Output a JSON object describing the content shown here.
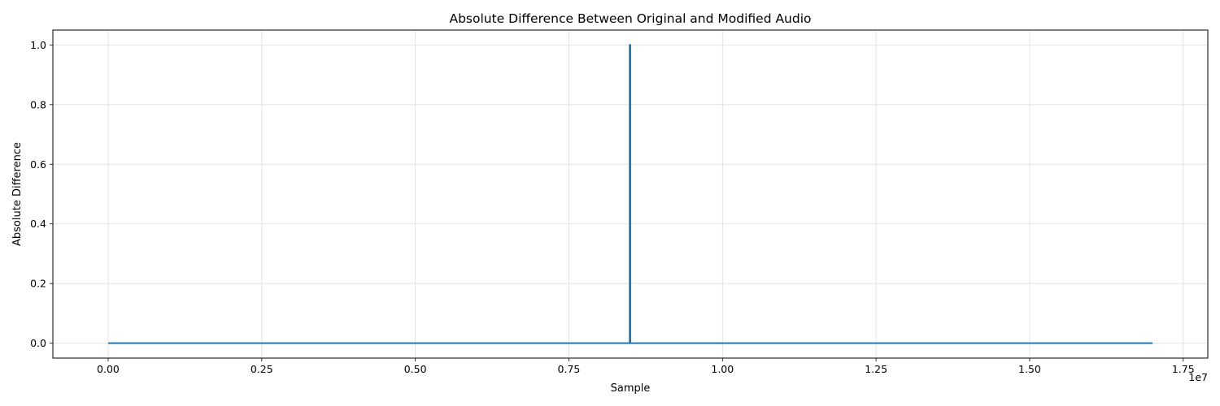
{
  "chart_data": {
    "type": "line",
    "title": "Absolute Difference Between Original and Modified Audio",
    "xlabel": "Sample",
    "ylabel": "Absolute Difference",
    "x_offset_text": "1e7",
    "xlim": [
      -900000,
      17900000
    ],
    "ylim": [
      -0.05,
      1.05
    ],
    "x_ticks": [
      0,
      2500000,
      5000000,
      7500000,
      10000000,
      12500000,
      15000000,
      17500000
    ],
    "x_tick_labels": [
      "0.00",
      "0.25",
      "0.50",
      "0.75",
      "1.00",
      "1.25",
      "1.50",
      "1.75"
    ],
    "y_ticks": [
      0,
      0.2,
      0.4,
      0.6,
      0.8,
      1.0
    ],
    "y_tick_labels": [
      "0.0",
      "0.2",
      "0.4",
      "0.6",
      "0.8",
      "1.0"
    ],
    "grid": true,
    "series": [
      {
        "color": "#1f77b4",
        "x": [
          0,
          8490000,
          8490000,
          8500000,
          8500000,
          17000000
        ],
        "y": [
          0,
          0,
          1.0,
          1.0,
          0,
          0
        ]
      }
    ]
  }
}
